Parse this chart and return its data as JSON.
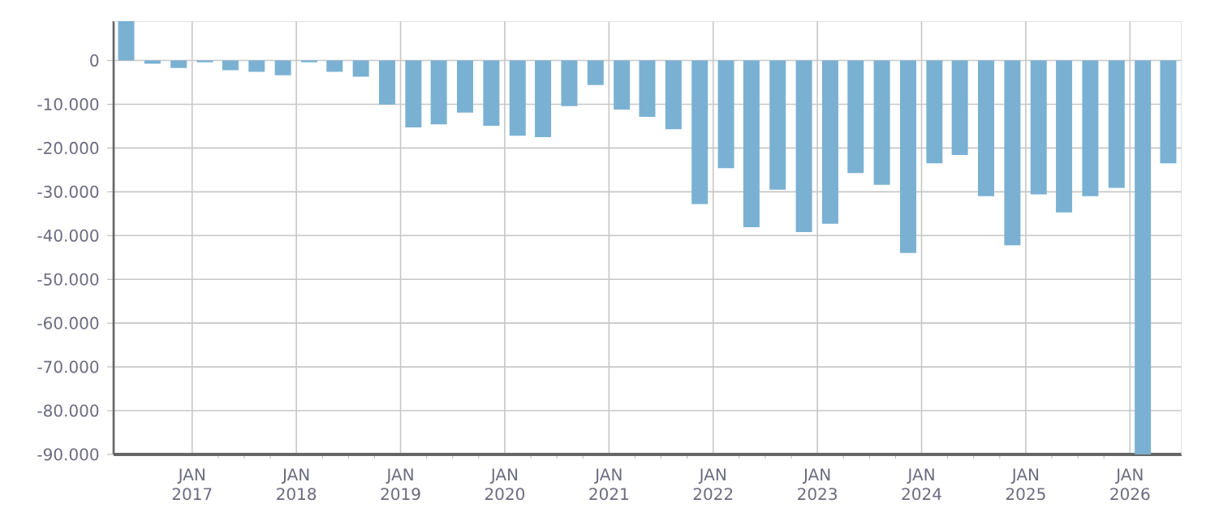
{
  "chart_data": {
    "type": "bar",
    "color": "#7ab1d3",
    "grid": true,
    "x": [
      "2016-05-15",
      "2016-08-15",
      "2016-11-15",
      "2017-02-15",
      "2017-05-15",
      "2017-08-15",
      "2017-11-15",
      "2018-02-15",
      "2018-05-15",
      "2018-08-15",
      "2018-11-15",
      "2019-02-15",
      "2019-05-15",
      "2019-08-15",
      "2019-11-15",
      "2020-02-15",
      "2020-05-15",
      "2020-08-15",
      "2020-11-15",
      "2021-02-15",
      "2021-05-15",
      "2021-08-15",
      "2021-11-15",
      "2022-02-15",
      "2022-05-15",
      "2022-08-15",
      "2022-11-15",
      "2023-02-15",
      "2023-05-15",
      "2023-08-15",
      "2023-11-15",
      "2024-02-15",
      "2024-05-15",
      "2024-08-15",
      "2024-11-15",
      "2025-02-15",
      "2025-05-15",
      "2025-08-15",
      "2025-11-15",
      "2026-02-15",
      "2026-05-15"
    ],
    "values": [
      9000,
      -750,
      -1700,
      -400,
      -2200,
      -2600,
      -3400,
      -400,
      -2600,
      -3700,
      -10100,
      -15300,
      -14600,
      -11900,
      -14900,
      -17200,
      -17500,
      -10400,
      -5600,
      -11200,
      -12900,
      -15700,
      -32800,
      -24600,
      -38100,
      -29500,
      -39200,
      -37300,
      -25700,
      -28400,
      -44000,
      -23500,
      -21600,
      -31000,
      -42200,
      -30600,
      -34700,
      -31000,
      -29100,
      -90000,
      -23500
    ],
    "xlim": [
      "2016-04-01",
      "2026-07-01"
    ],
    "xticks": [
      {
        "value": "2017-01-01",
        "label": "JAN 2017"
      },
      {
        "value": "2018-01-01",
        "label": "JAN 2018"
      },
      {
        "value": "2019-01-01",
        "label": "JAN 2019"
      },
      {
        "value": "2020-01-01",
        "label": "JAN 2020"
      },
      {
        "value": "2021-01-01",
        "label": "JAN 2021"
      },
      {
        "value": "2022-01-01",
        "label": "JAN 2022"
      },
      {
        "value": "2023-01-01",
        "label": "JAN 2023"
      },
      {
        "value": "2024-01-01",
        "label": "JAN 2024"
      },
      {
        "value": "2025-01-01",
        "label": "JAN 2025"
      },
      {
        "value": "2026-01-01",
        "label": "JAN 2026"
      }
    ],
    "ylim": [
      -90000,
      9000
    ],
    "yticks": [
      {
        "value": 0,
        "label": "0"
      },
      {
        "value": -10000,
        "label": "-10.000"
      },
      {
        "value": -20000,
        "label": "-20.000"
      },
      {
        "value": -30000,
        "label": "-30.000"
      },
      {
        "value": -40000,
        "label": "-40.000"
      },
      {
        "value": -50000,
        "label": "-50.000"
      },
      {
        "value": -60000,
        "label": "-60.000"
      },
      {
        "value": -70000,
        "label": "-70.000"
      },
      {
        "value": -80000,
        "label": "-80.000"
      },
      {
        "value": -90000,
        "label": "-90.000"
      }
    ]
  }
}
